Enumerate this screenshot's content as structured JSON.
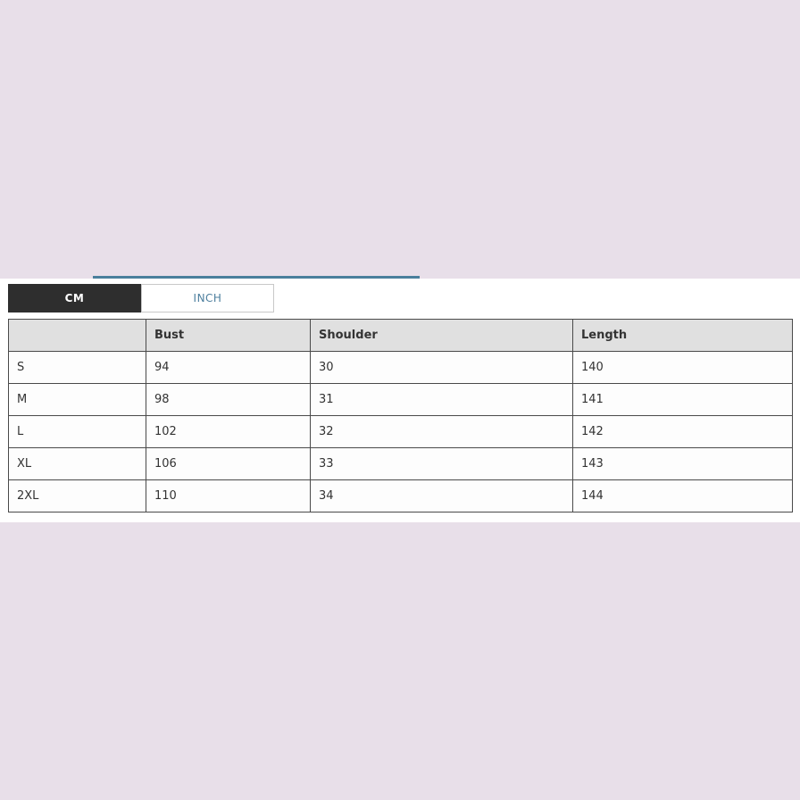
{
  "theme": {
    "page_bg": "#e8dfe9",
    "panel_bg": "#ffffff",
    "divider_color": "#4a7f9c",
    "active_tab_bg": "#2e2e2e",
    "active_tab_text": "#ffffff",
    "inactive_tab_text": "#4d7f9e",
    "table_header_bg": "#e0e0e0",
    "table_border_color": "#4a4a4a"
  },
  "unit_tabs": {
    "selected": "CM",
    "cm_label": "CM",
    "inch_label": "INCH"
  },
  "size_chart": {
    "columns": {
      "size": "",
      "bust": "Bust",
      "shoulder": "Shoulder",
      "length": "Length"
    },
    "rows": [
      {
        "size": "S",
        "bust": "94",
        "shoulder": "30",
        "length": "140"
      },
      {
        "size": "M",
        "bust": "98",
        "shoulder": "31",
        "length": "141"
      },
      {
        "size": "L",
        "bust": "102",
        "shoulder": "32",
        "length": "142"
      },
      {
        "size": "XL",
        "bust": "106",
        "shoulder": "33",
        "length": "143"
      },
      {
        "size": "2XL",
        "bust": "110",
        "shoulder": "34",
        "length": "144"
      }
    ]
  }
}
